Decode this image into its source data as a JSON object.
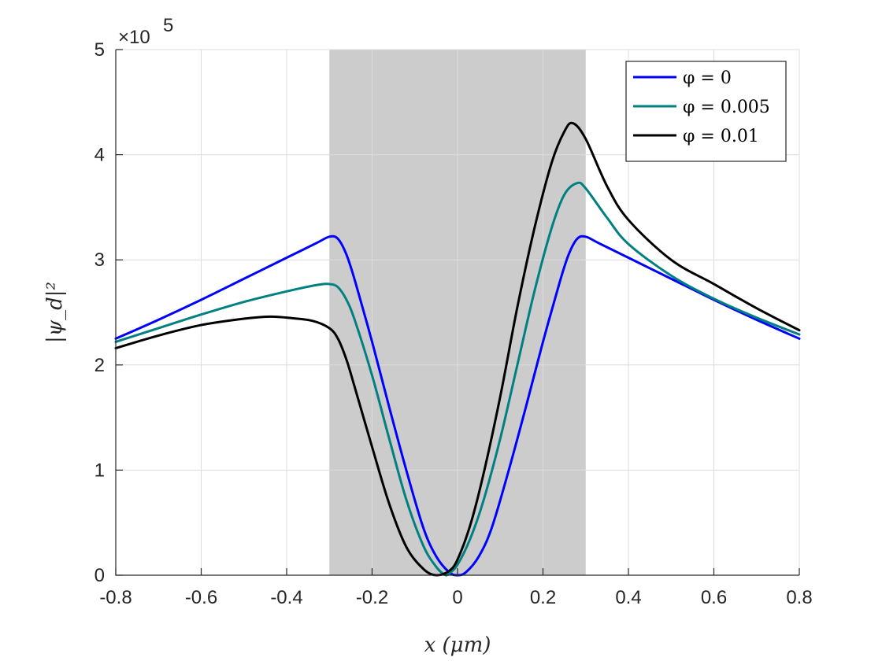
{
  "chart_data": {
    "type": "line",
    "title": "",
    "xlabel": "x (μm)",
    "ylabel": "|ψ_d|²",
    "xlim": [
      -0.8,
      0.8
    ],
    "ylim": [
      0,
      500000
    ],
    "y_exponent_label": "×10",
    "y_exponent_power": "5",
    "x_ticks": [
      -0.8,
      -0.6,
      -0.4,
      -0.2,
      0,
      0.2,
      0.4,
      0.6,
      0.8
    ],
    "x_tick_labels": [
      "-0.8",
      "-0.6",
      "-0.4",
      "-0.2",
      "0",
      "0.2",
      "0.4",
      "0.6",
      "0.8"
    ],
    "y_ticks": [
      0,
      100000,
      200000,
      300000,
      400000,
      500000
    ],
    "y_tick_labels": [
      "0",
      "1",
      "2",
      "3",
      "4",
      "5"
    ],
    "grid": true,
    "legend_position": "top-right",
    "shaded_region": {
      "x_start": -0.3,
      "x_end": 0.3,
      "color": "#cccccc"
    },
    "series": [
      {
        "name": "φ = 0",
        "color": "#0000ff",
        "points": [
          [
            -0.8,
            225000
          ],
          [
            -0.7,
            243000
          ],
          [
            -0.6,
            262000
          ],
          [
            -0.5,
            282000
          ],
          [
            -0.4,
            302000
          ],
          [
            -0.33,
            316000
          ],
          [
            -0.3,
            322000
          ],
          [
            -0.28,
            320000
          ],
          [
            -0.26,
            305000
          ],
          [
            -0.24,
            280000
          ],
          [
            -0.2,
            222000
          ],
          [
            -0.16,
            160000
          ],
          [
            -0.12,
            100000
          ],
          [
            -0.08,
            45000
          ],
          [
            -0.05,
            18000
          ],
          [
            -0.02,
            3000
          ],
          [
            0,
            0
          ],
          [
            0.02,
            3000
          ],
          [
            0.05,
            18000
          ],
          [
            0.08,
            45000
          ],
          [
            0.12,
            100000
          ],
          [
            0.16,
            160000
          ],
          [
            0.2,
            222000
          ],
          [
            0.24,
            280000
          ],
          [
            0.26,
            305000
          ],
          [
            0.28,
            320000
          ],
          [
            0.3,
            322000
          ],
          [
            0.33,
            316000
          ],
          [
            0.4,
            302000
          ],
          [
            0.5,
            282000
          ],
          [
            0.6,
            262000
          ],
          [
            0.7,
            243000
          ],
          [
            0.8,
            225000
          ]
        ]
      },
      {
        "name": "φ = 0.005",
        "color": "#008080",
        "points": [
          [
            -0.8,
            222000
          ],
          [
            -0.7,
            235000
          ],
          [
            -0.6,
            248000
          ],
          [
            -0.5,
            260000
          ],
          [
            -0.4,
            270000
          ],
          [
            -0.33,
            276000
          ],
          [
            -0.3,
            277000
          ],
          [
            -0.28,
            274000
          ],
          [
            -0.26,
            262000
          ],
          [
            -0.24,
            242000
          ],
          [
            -0.2,
            190000
          ],
          [
            -0.16,
            130000
          ],
          [
            -0.12,
            72000
          ],
          [
            -0.08,
            28000
          ],
          [
            -0.05,
            8000
          ],
          [
            -0.03,
            500
          ],
          [
            -0.02,
            1500
          ],
          [
            0,
            10000
          ],
          [
            0.03,
            35000
          ],
          [
            0.06,
            70000
          ],
          [
            0.1,
            130000
          ],
          [
            0.14,
            200000
          ],
          [
            0.18,
            270000
          ],
          [
            0.22,
            330000
          ],
          [
            0.25,
            362000
          ],
          [
            0.28,
            373000
          ],
          [
            0.3,
            368000
          ],
          [
            0.35,
            340000
          ],
          [
            0.4,
            315000
          ],
          [
            0.5,
            285000
          ],
          [
            0.6,
            263000
          ],
          [
            0.7,
            245000
          ],
          [
            0.8,
            229000
          ]
        ]
      },
      {
        "name": "φ = 0.01",
        "color": "#000000",
        "points": [
          [
            -0.8,
            216000
          ],
          [
            -0.7,
            228000
          ],
          [
            -0.6,
            238000
          ],
          [
            -0.5,
            244000
          ],
          [
            -0.44,
            246000
          ],
          [
            -0.4,
            245000
          ],
          [
            -0.34,
            242000
          ],
          [
            -0.3,
            235000
          ],
          [
            -0.28,
            225000
          ],
          [
            -0.26,
            205000
          ],
          [
            -0.24,
            178000
          ],
          [
            -0.2,
            122000
          ],
          [
            -0.16,
            68000
          ],
          [
            -0.12,
            27000
          ],
          [
            -0.08,
            6000
          ],
          [
            -0.05,
            0
          ],
          [
            -0.02,
            4000
          ],
          [
            0,
            15000
          ],
          [
            0.03,
            48000
          ],
          [
            0.06,
            95000
          ],
          [
            0.1,
            170000
          ],
          [
            0.14,
            255000
          ],
          [
            0.18,
            330000
          ],
          [
            0.22,
            392000
          ],
          [
            0.25,
            422000
          ],
          [
            0.27,
            430000
          ],
          [
            0.3,
            415000
          ],
          [
            0.35,
            370000
          ],
          [
            0.4,
            338000
          ],
          [
            0.5,
            300000
          ],
          [
            0.6,
            277000
          ],
          [
            0.7,
            254000
          ],
          [
            0.8,
            233000
          ]
        ]
      }
    ]
  }
}
